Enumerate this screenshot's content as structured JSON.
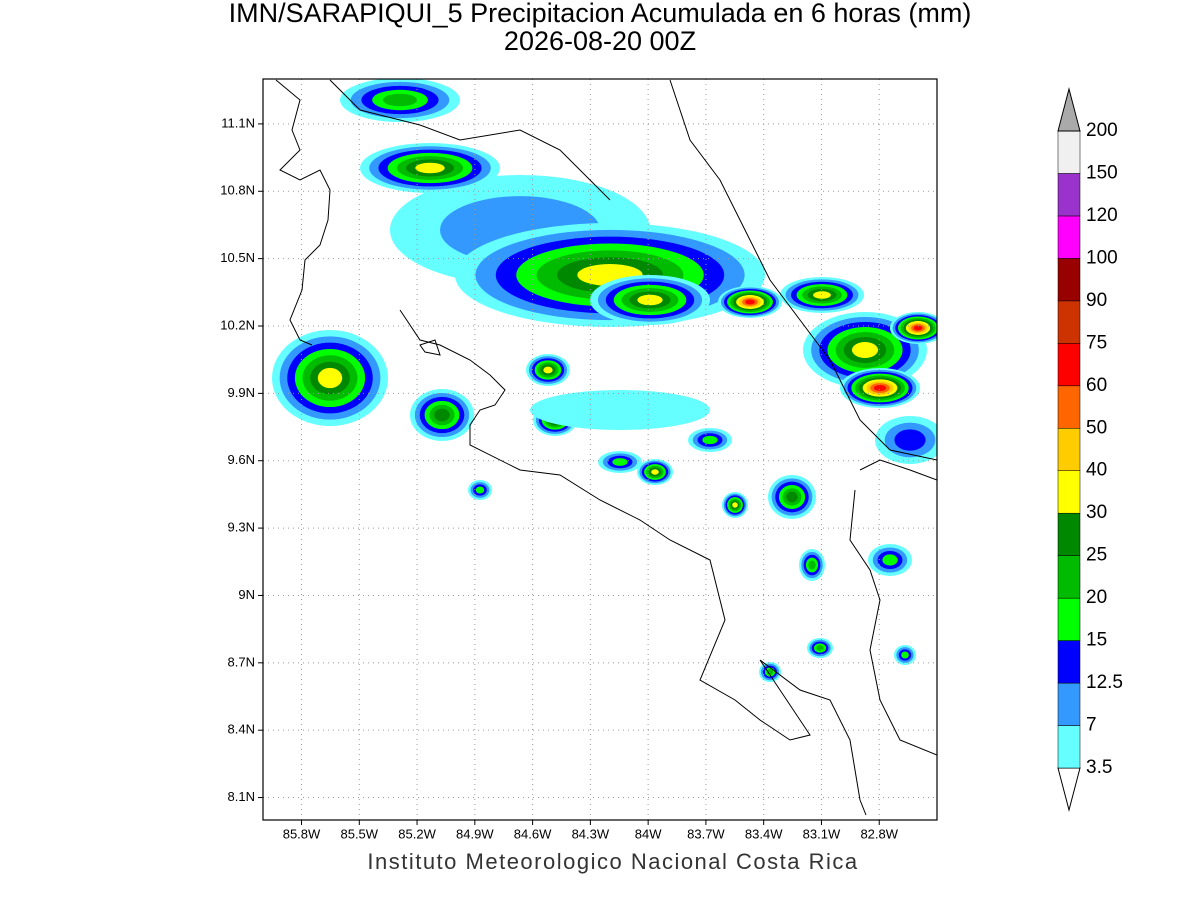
{
  "header": {
    "title": "IMN/SARAPIQUI_5 Precipitacion Acumulada en 6 horas (mm)",
    "subtitle": "2026-08-20 00Z"
  },
  "map": {
    "xlim": [
      -86.0,
      -82.5
    ],
    "ylim": [
      8.0,
      11.3
    ],
    "xticks": [
      {
        "value": -85.8,
        "label": "85.8W"
      },
      {
        "value": -85.5,
        "label": "85.5W"
      },
      {
        "value": -85.2,
        "label": "85.2W"
      },
      {
        "value": -84.9,
        "label": "84.9W"
      },
      {
        "value": -84.6,
        "label": "84.6W"
      },
      {
        "value": -84.3,
        "label": "84.3W"
      },
      {
        "value": -84.0,
        "label": "84W"
      },
      {
        "value": -83.7,
        "label": "83.7W"
      },
      {
        "value": -83.4,
        "label": "83.4W"
      },
      {
        "value": -83.1,
        "label": "83.1W"
      },
      {
        "value": -82.8,
        "label": "82.8W"
      }
    ],
    "yticks": [
      {
        "value": 8.1,
        "label": "8.1N"
      },
      {
        "value": 8.4,
        "label": "8.4N"
      },
      {
        "value": 8.7,
        "label": "8.7N"
      },
      {
        "value": 9.0,
        "label": "9N"
      },
      {
        "value": 9.3,
        "label": "9.3N"
      },
      {
        "value": 9.6,
        "label": "9.6N"
      },
      {
        "value": 9.9,
        "label": "9.9N"
      },
      {
        "value": 10.2,
        "label": "10.2N"
      },
      {
        "value": 10.5,
        "label": "10.5N"
      },
      {
        "value": 10.8,
        "label": "10.8N"
      },
      {
        "value": 11.1,
        "label": "11.1N"
      }
    ],
    "grid": true
  },
  "colorbar": {
    "levels": [
      3.5,
      7,
      12.5,
      15,
      20,
      25,
      30,
      40,
      50,
      60,
      75,
      90,
      100,
      120,
      150,
      200
    ],
    "colors": [
      "#ffffff",
      "#66ffff",
      "#3399ff",
      "#0000ff",
      "#00ff00",
      "#00bb00",
      "#008800",
      "#ffff00",
      "#ffcc00",
      "#ff6600",
      "#ff0000",
      "#cc3300",
      "#990000",
      "#ff00ff",
      "#9933cc",
      "#f0f0f0",
      "#aaaaaa"
    ]
  },
  "footer": "Instituto Meteorologico Nacional Costa Rica"
}
